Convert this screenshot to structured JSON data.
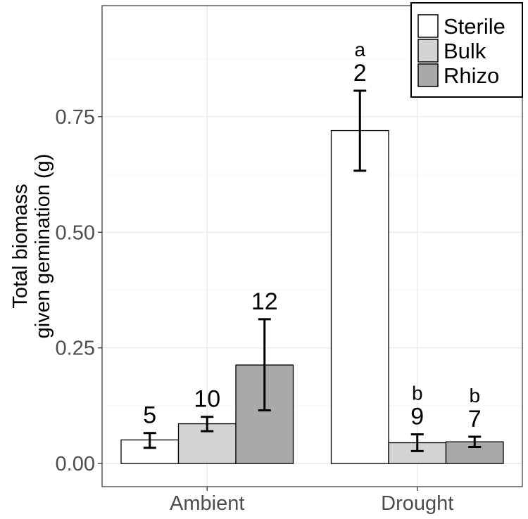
{
  "chart_data": {
    "type": "bar",
    "categories": [
      "Ambient",
      "Drought"
    ],
    "ylabel_lines": [
      "Total biomass",
      "given gemination (g)"
    ],
    "xlabel": "",
    "ylim": [
      -0.05,
      0.99
    ],
    "yticks": [
      0.0,
      0.25,
      0.5,
      0.75
    ],
    "ytick_labels": [
      "0.00",
      "0.25",
      "0.50",
      "0.75"
    ],
    "grid": true,
    "legend_position": "top-right",
    "series": [
      {
        "name": "Sterile",
        "color": "#ffffff",
        "values": [
          0.051,
          0.72
        ],
        "err_low": [
          0.034,
          0.633
        ],
        "err_high": [
          0.066,
          0.806
        ],
        "n_labels": [
          "5",
          "2"
        ],
        "letters": [
          "",
          "a"
        ]
      },
      {
        "name": "Bulk",
        "color": "#d3d3d3",
        "values": [
          0.086,
          0.045
        ],
        "err_low": [
          0.07,
          0.027
        ],
        "err_high": [
          0.101,
          0.063
        ],
        "n_labels": [
          "10",
          "9"
        ],
        "letters": [
          "",
          "b"
        ]
      },
      {
        "name": "Rhizo",
        "color": "#a9a9a9",
        "values": [
          0.213,
          0.047
        ],
        "err_low": [
          0.115,
          0.036
        ],
        "err_high": [
          0.312,
          0.058
        ],
        "n_labels": [
          "12",
          "7"
        ],
        "letters": [
          "",
          "b"
        ]
      }
    ]
  }
}
